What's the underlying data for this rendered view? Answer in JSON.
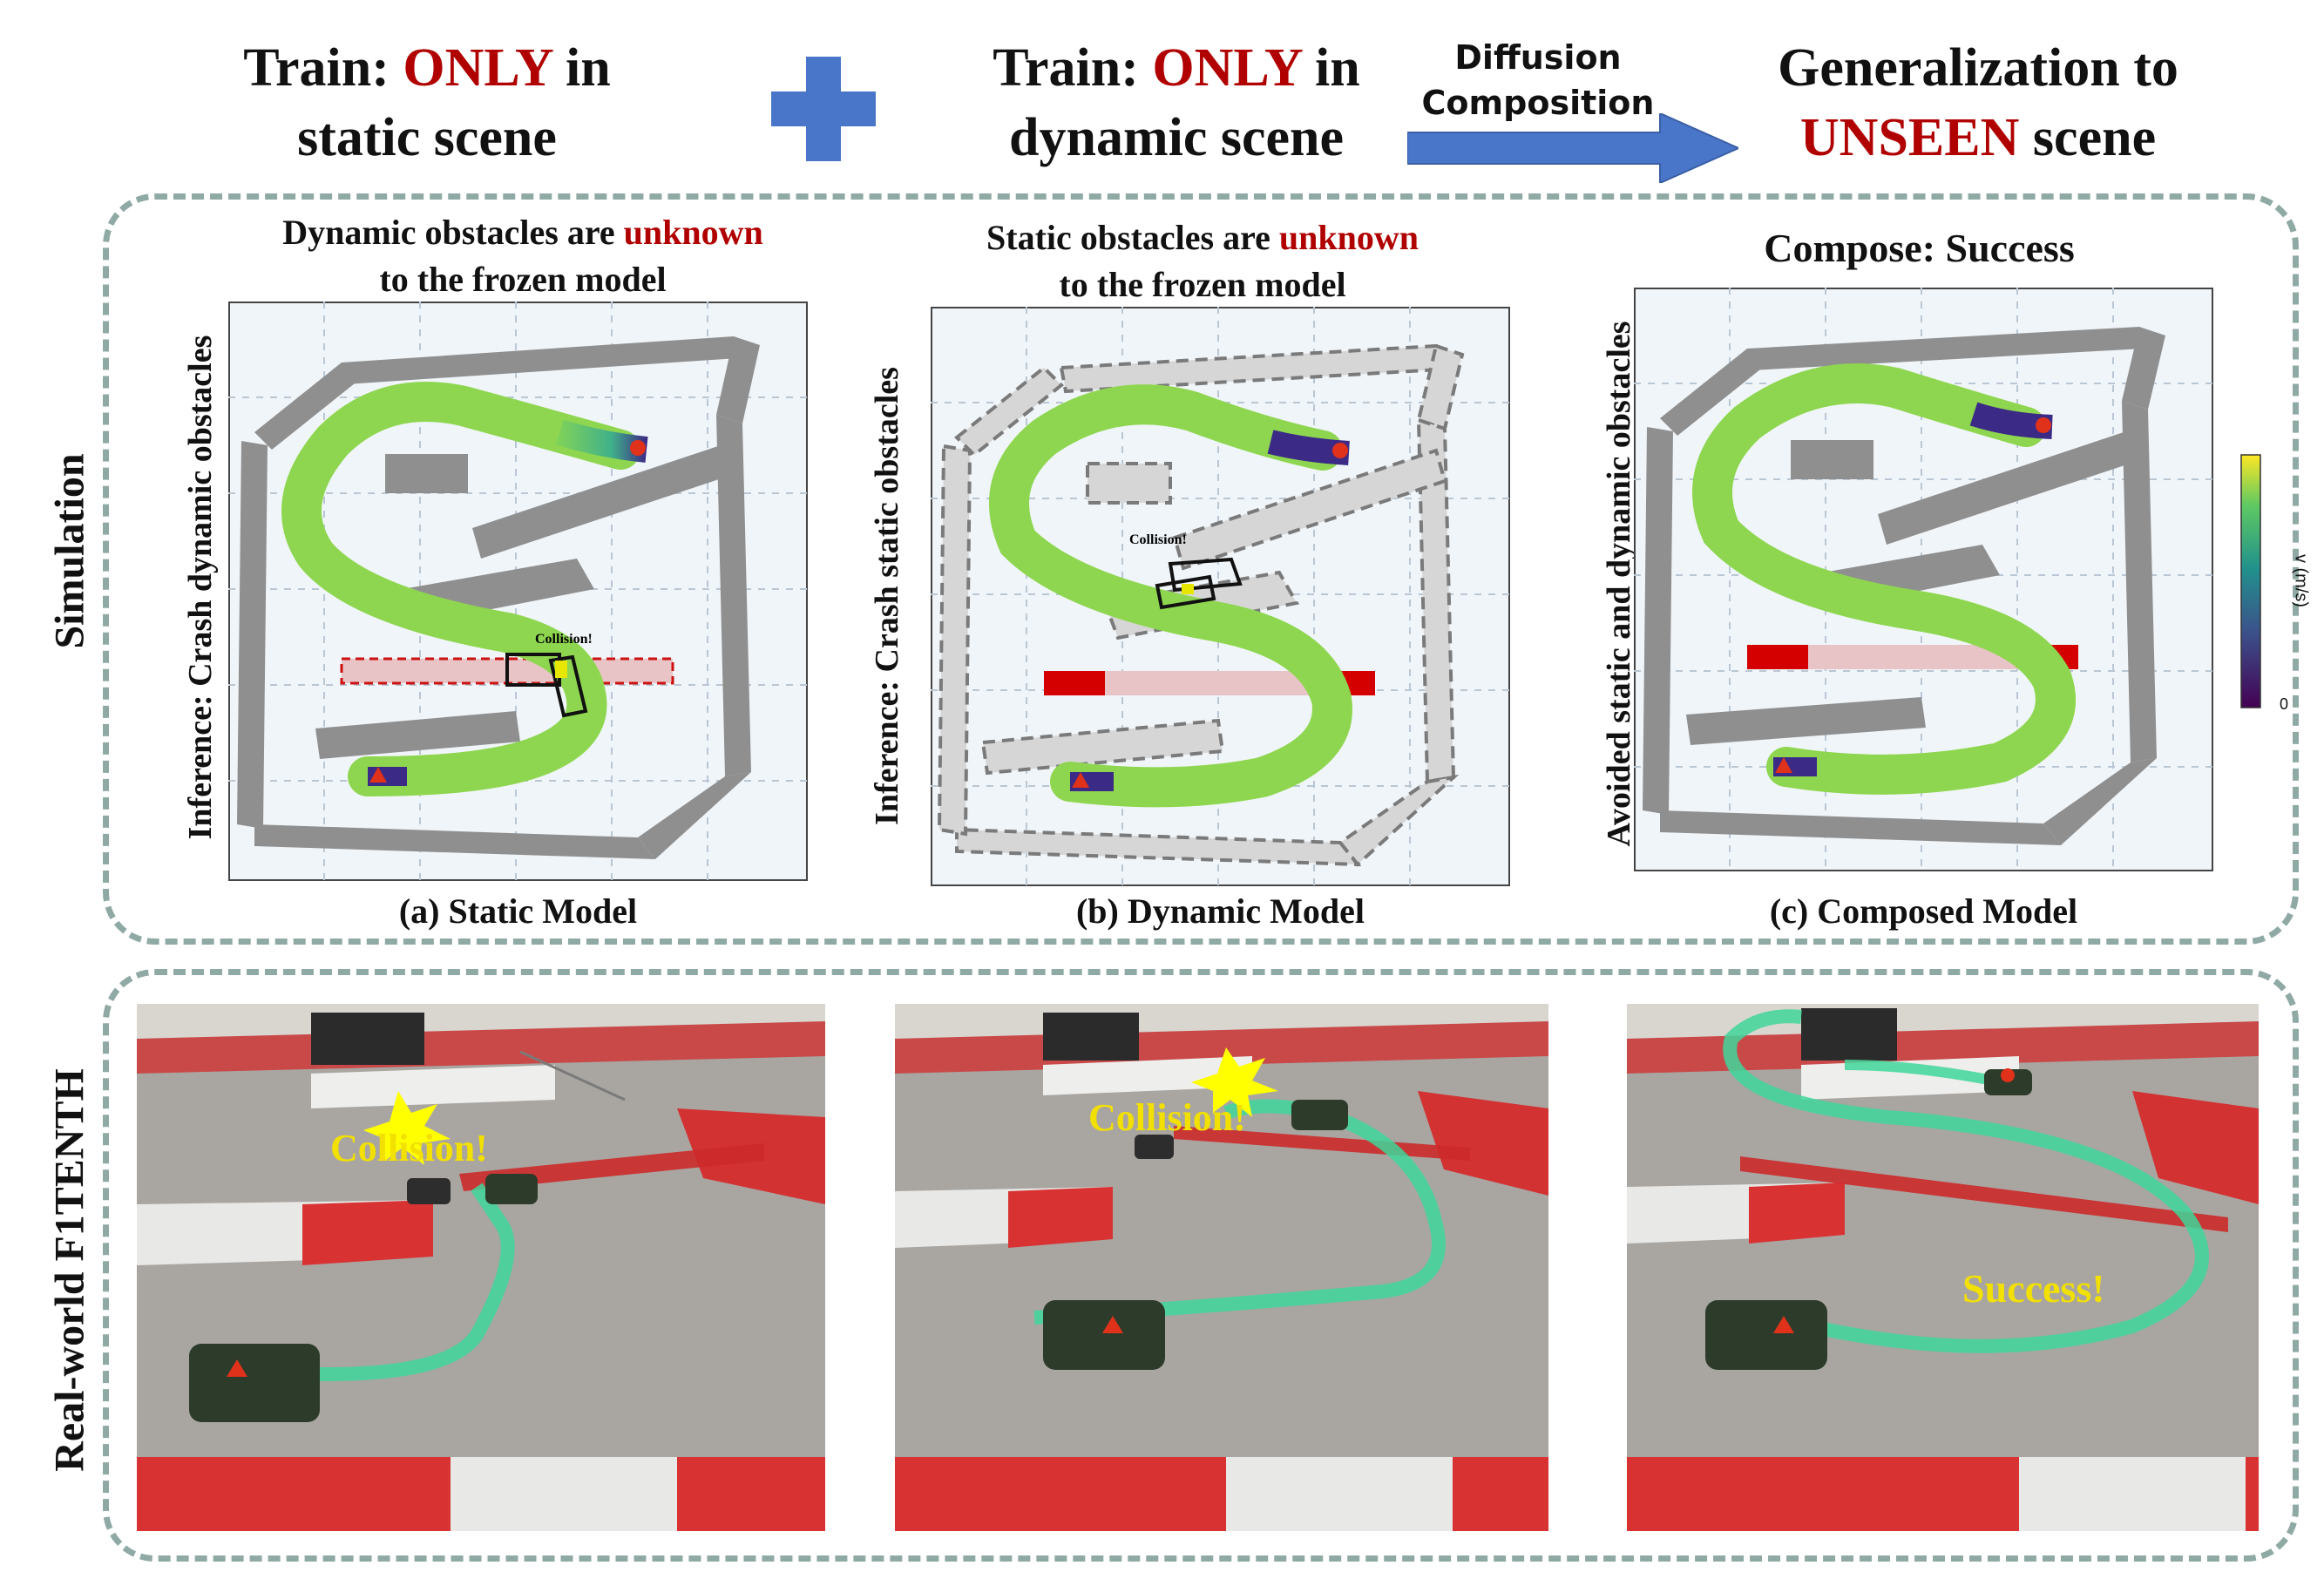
{
  "header": {
    "static_train": {
      "prefix": "Train: ",
      "only": "ONLY",
      "suffix": " in",
      "line2": "static scene"
    },
    "dynamic_train": {
      "prefix": "Train: ",
      "only": "ONLY",
      "suffix": " in",
      "line2": "dynamic scene"
    },
    "diffusion_line1": "Diffusion",
    "diffusion_line2": "Composition",
    "generalization": {
      "line1": "Generalization to",
      "unseen": "UNSEEN",
      "suffix": " scene"
    }
  },
  "row_labels": {
    "simulation": "Simulation",
    "real_world": "Real-world F1TENTH"
  },
  "panels": [
    {
      "id": "a",
      "title_pre": "Dynamic obstacles are ",
      "title_red": "unknown",
      "title_line2": "to the frozen model",
      "side_label": "Inference: Crash dynamic obstacles",
      "caption": "(a) Static Model",
      "collision": "Collision!"
    },
    {
      "id": "b",
      "title_pre": "Static obstacles are ",
      "title_red": "unknown",
      "title_line2": "to the frozen model",
      "side_label": "Inference: Crash static obstacles",
      "caption": "(b) Dynamic Model",
      "collision": "Collision!"
    },
    {
      "id": "c",
      "title": "Compose: Success",
      "side_label": "Avoided static and dynamic obstacles",
      "caption": "(c) Composed Model"
    }
  ],
  "colorbar": {
    "label": "v (m/s)",
    "min_tick": "0"
  },
  "photos": [
    {
      "label": "Collision!"
    },
    {
      "label": "Collision!"
    },
    {
      "label": "Success!"
    }
  ],
  "colors": {
    "accent_red": "#b00000",
    "arrow_blue": "#4a76c9",
    "frame": "#8fa9a4",
    "wall": "#8f8f8f"
  }
}
